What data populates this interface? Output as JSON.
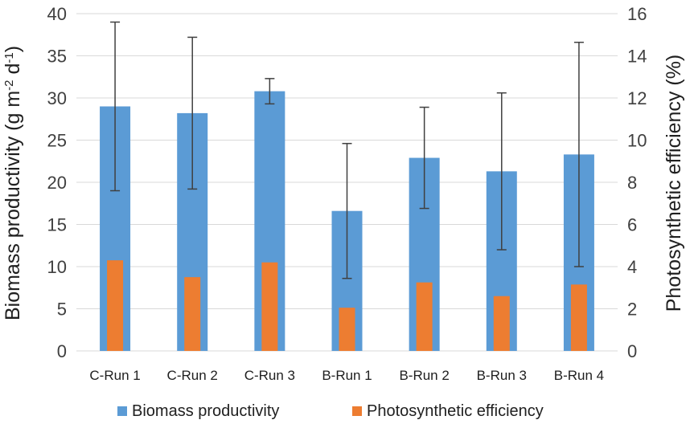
{
  "chart_data": {
    "type": "bar",
    "categories": [
      "C-Run 1",
      "C-Run 2",
      "C-Run 3",
      "B-Run 1",
      "B-Run 2",
      "B-Run 3",
      "B-Run 4"
    ],
    "series": [
      {
        "name": "Biomass productivity",
        "axis": "left",
        "color": "#5B9BD5",
        "values": [
          29.0,
          28.2,
          30.8,
          16.6,
          22.9,
          21.3,
          23.3
        ],
        "error": [
          10.0,
          9.0,
          1.5,
          8.0,
          6.0,
          9.3,
          13.3
        ]
      },
      {
        "name": "Photosynthetic efficiency",
        "axis": "right",
        "color": "#ED7D31",
        "values": [
          4.3,
          3.5,
          4.2,
          2.05,
          3.25,
          2.6,
          3.15
        ]
      }
    ],
    "ylabel_left": "Biomass productivity (g m",
    "ylabel_left_sup1": "-2",
    "ylabel_left_mid": " d",
    "ylabel_left_sup2": "-1",
    "ylabel_left_end": ")",
    "ylabel_right": "Photosynthetic efficiency (%)",
    "ylim_left": [
      0,
      40
    ],
    "ylim_right": [
      0,
      16
    ],
    "yticks_left": [
      "0",
      "5",
      "10",
      "15",
      "20",
      "25",
      "30",
      "35",
      "40"
    ],
    "yticks_right": [
      "0",
      "2",
      "4",
      "6",
      "8",
      "10",
      "12",
      "14",
      "16"
    ],
    "grid": true,
    "legend_position": "bottom"
  }
}
